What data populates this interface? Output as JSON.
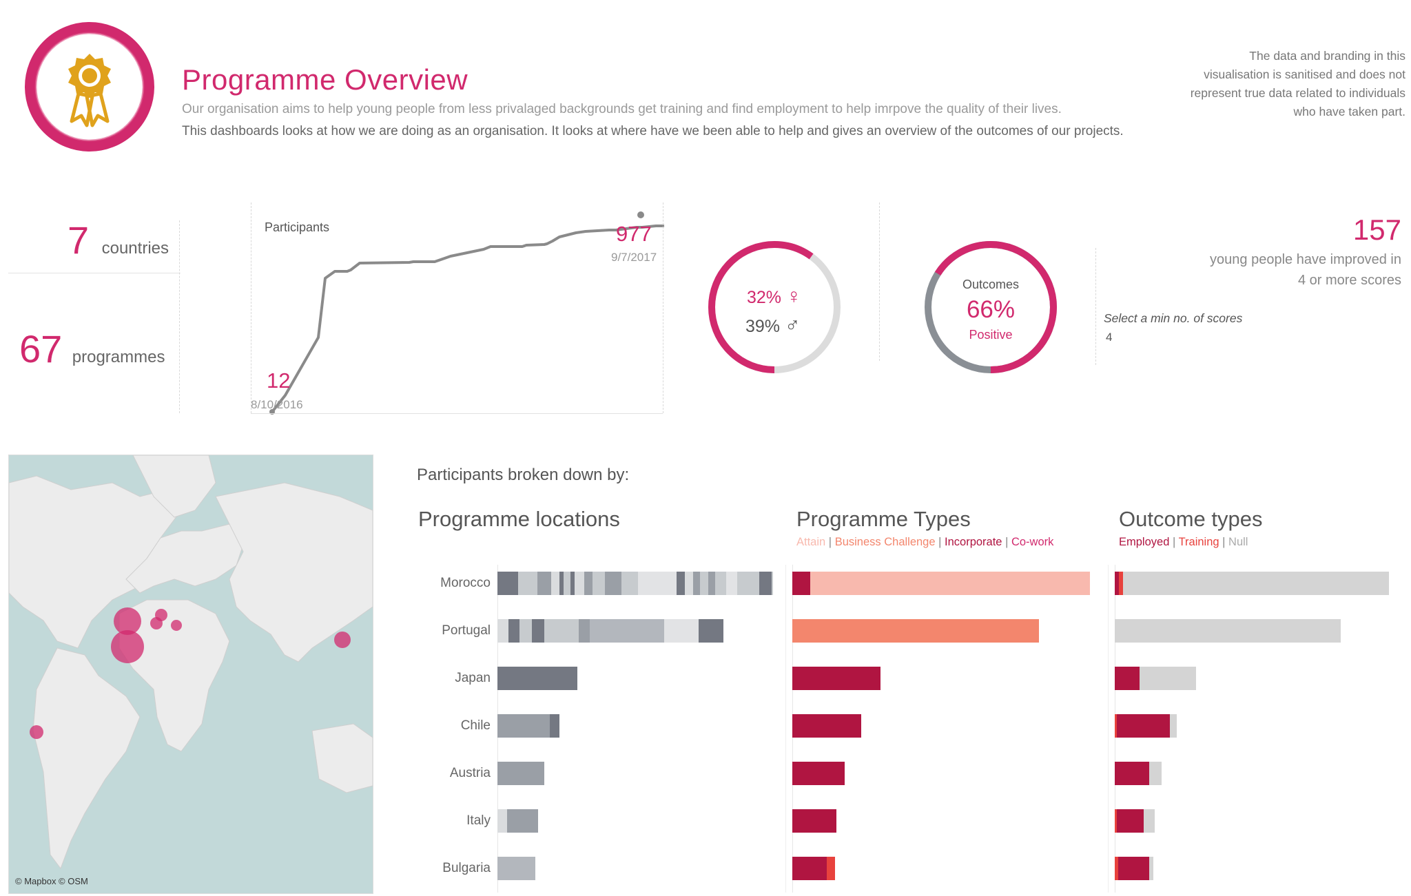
{
  "header": {
    "title": "Programme Overview",
    "description_line1": "Our organisation aims to help young people from less privalaged backgrounds get training and find employment to help imrpove the quality of their lives.",
    "description_line2": "This dashboards looks at how we are doing as an organisation. It looks at where have we been able to help and gives an overview of the outcomes of our projects.",
    "disclaimer": "The data and branding in this visualisation is sanitised and does not represent true data related to individuals who have taken part.",
    "logo_icon": "award-ribbon-icon"
  },
  "kpis": {
    "countries_value": "7",
    "countries_label": "countries",
    "programmes_value": "67",
    "programmes_label": "programmes"
  },
  "participants": {
    "title": "Participants",
    "end_value": "977",
    "end_date": "9/7/2017",
    "start_value": "12",
    "start_date": "8/10/2016"
  },
  "gender": {
    "female_pct": "32%",
    "female_symbol": "♀",
    "male_pct": "39%",
    "male_symbol": "♂",
    "female_fraction": 0.32,
    "male_fraction": 0.39
  },
  "outcomes": {
    "title": "Outcomes",
    "value": "66%",
    "label": "Positive",
    "fraction": 0.66
  },
  "improved": {
    "value": "157",
    "line1": "young people have improved in",
    "line2": "4 or more scores",
    "param_label": "Select a min no. of  scores",
    "param_value": "4"
  },
  "map": {
    "credit": "© Mapbox © OSM"
  },
  "breakdown": {
    "title": "Participants broken down by:",
    "locations_title": "Programme locations",
    "types_title": "Programme Types",
    "outcome_title": "Outcome types",
    "types_legend": [
      "Attain",
      "Business Challenge",
      "Incorporate",
      "Co-work"
    ],
    "outcome_legend": [
      "Employed",
      "Training",
      "Null"
    ],
    "separator": "|",
    "rows": [
      "Morocco",
      "Portugal",
      "Japan",
      "Chile",
      "Austria",
      "Italy",
      "Bulgaria"
    ]
  },
  "colors": {
    "accent": "#d1296d",
    "attain": "#f8b9ae",
    "business_challenge": "#f3866d",
    "incorporate": "#b01541",
    "cowork": "#e8423d",
    "null": "#d4d4d4",
    "grey_dark": "#747882",
    "grey_light": "#c7cbce"
  }
}
